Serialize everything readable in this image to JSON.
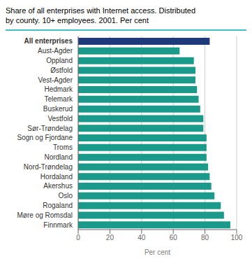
{
  "chart_data": {
    "type": "bar",
    "orientation": "horizontal",
    "title": "Share of all enterprises with Internet access. Distributed",
    "subtitle": "by county. 10+ employees. 2001. Per cent",
    "categories": [
      "All enterprises",
      "Aust-Agder",
      "Oppland",
      "Østfold",
      "Vest-Agder",
      "Hedmark",
      "Telemark",
      "Buskerud",
      "Vestfold",
      "Sør-Trøndelag",
      "Sogn og Fjordane",
      "Troms",
      "Nordland",
      "Nord-Trøndelag",
      "Hordaland",
      "Akershus",
      "Oslo",
      "Rogaland",
      "Møre og Romsdal",
      "Finnmark"
    ],
    "values": [
      83,
      64,
      73,
      74,
      74,
      75,
      76,
      77,
      79,
      79,
      81,
      81,
      81,
      82,
      83,
      84,
      86,
      90,
      92,
      96
    ],
    "colors": [
      "#1e3a7a",
      "#1a9a8a",
      "#1a9a8a",
      "#1a9a8a",
      "#1a9a8a",
      "#1a9a8a",
      "#1a9a8a",
      "#1a9a8a",
      "#1a9a8a",
      "#1a9a8a",
      "#1a9a8a",
      "#1a9a8a",
      "#1a9a8a",
      "#1a9a8a",
      "#1a9a8a",
      "#1a9a8a",
      "#1a9a8a",
      "#1a9a8a",
      "#1a9a8a",
      "#1a9a8a"
    ],
    "xlabel": "Per cent",
    "xlim": [
      0,
      100
    ],
    "xticks": [
      0,
      20,
      40,
      60,
      80,
      100
    ],
    "grid": true
  }
}
